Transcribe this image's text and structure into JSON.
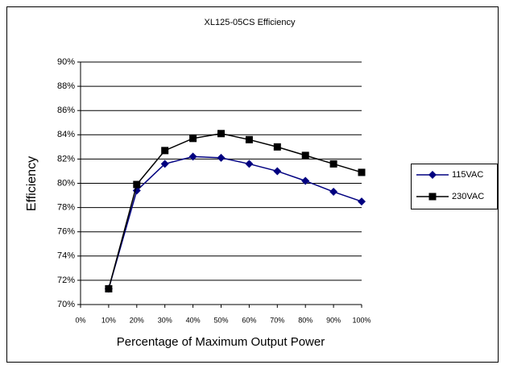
{
  "chart_data": {
    "type": "line",
    "title": "XL125-05CS Efficiency",
    "xlabel": "Percentage of Maximum Output Power",
    "ylabel": "Efficiency",
    "x": [
      10,
      20,
      30,
      40,
      50,
      60,
      70,
      80,
      90,
      100
    ],
    "series": [
      {
        "name": "115VAC",
        "color": "#000080",
        "marker": "diamond",
        "values": [
          71.3,
          79.4,
          81.6,
          82.2,
          82.1,
          81.6,
          81.0,
          80.2,
          79.3,
          78.5
        ]
      },
      {
        "name": "230VAC",
        "color": "#000000",
        "marker": "square",
        "values": [
          71.3,
          79.9,
          82.7,
          83.7,
          84.1,
          83.6,
          83.0,
          82.3,
          81.6,
          80.9
        ]
      }
    ],
    "xlim": [
      0,
      100
    ],
    "xticks": [
      {
        "value": 0,
        "label": "0%"
      },
      {
        "value": 10,
        "label": "10%"
      },
      {
        "value": 20,
        "label": "20%"
      },
      {
        "value": 30,
        "label": "30%"
      },
      {
        "value": 40,
        "label": "40%"
      },
      {
        "value": 50,
        "label": "50%"
      },
      {
        "value": 60,
        "label": "60%"
      },
      {
        "value": 70,
        "label": "70%"
      },
      {
        "value": 80,
        "label": "80%"
      },
      {
        "value": 90,
        "label": "90%"
      },
      {
        "value": 100,
        "label": "100%"
      }
    ],
    "ylim": [
      70,
      90
    ],
    "yticks": [
      {
        "value": 70,
        "label": "70%"
      },
      {
        "value": 72,
        "label": "72%"
      },
      {
        "value": 74,
        "label": "74%"
      },
      {
        "value": 76,
        "label": "76%"
      },
      {
        "value": 78,
        "label": "78%"
      },
      {
        "value": 80,
        "label": "80%"
      },
      {
        "value": 82,
        "label": "82%"
      },
      {
        "value": 84,
        "label": "84%"
      },
      {
        "value": 86,
        "label": "86%"
      },
      {
        "value": 88,
        "label": "88%"
      },
      {
        "value": 90,
        "label": "90%"
      }
    ],
    "grid": true,
    "legend": "right"
  }
}
